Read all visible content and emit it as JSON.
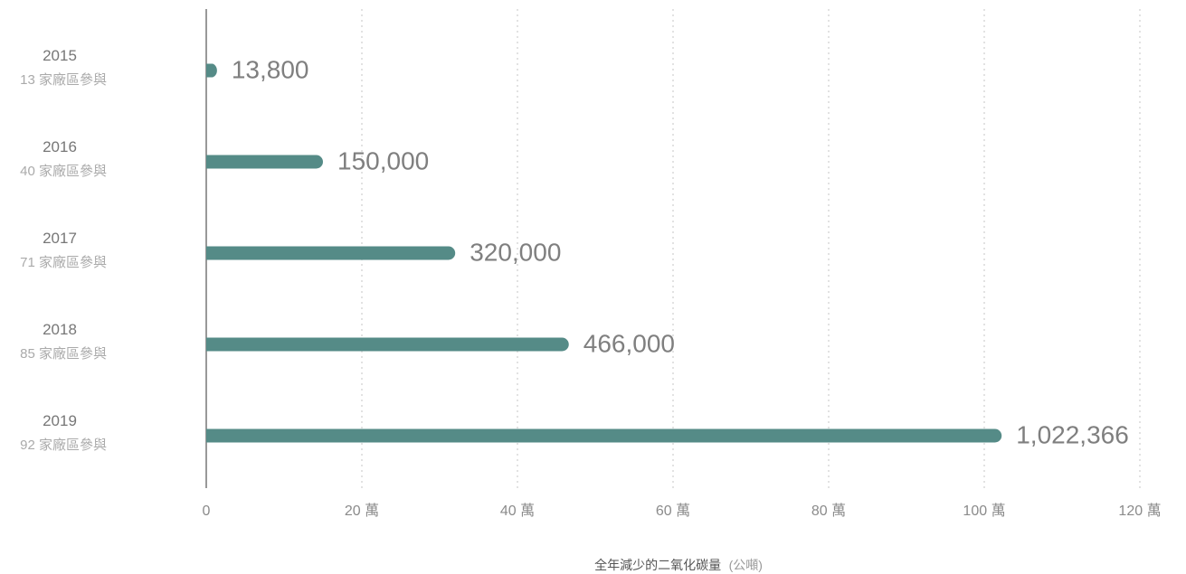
{
  "colors": {
    "bar": "#558b87",
    "value_label": "#7f7f7f",
    "grid": "#cfcfcf"
  },
  "chart_data": {
    "type": "bar",
    "orientation": "horizontal",
    "categories": [
      "2015",
      "2016",
      "2017",
      "2018",
      "2019"
    ],
    "category_sublabels": [
      "13 家廠區參與",
      "40 家廠區參與",
      "71 家廠區參與",
      "85 家廠區參與",
      "92 家廠區參與"
    ],
    "values": [
      13800,
      150000,
      320000,
      466000,
      1022366
    ],
    "value_labels": [
      "13,800",
      "150,000",
      "320,000",
      "466,000",
      "1,022,366"
    ],
    "x_ticks": [
      0,
      200000,
      400000,
      600000,
      800000,
      1000000,
      1200000
    ],
    "x_tick_labels": [
      "0",
      "20 萬",
      "40 萬",
      "60 萬",
      "80 萬",
      "100 萬",
      "120 萬"
    ],
    "xlabel": "全年減少的二氧化碳量",
    "xlabel_unit": "(公噸)",
    "ylabel": "",
    "xlim": [
      0,
      1200000
    ],
    "grid": "vertical dashed",
    "legend": "none"
  }
}
